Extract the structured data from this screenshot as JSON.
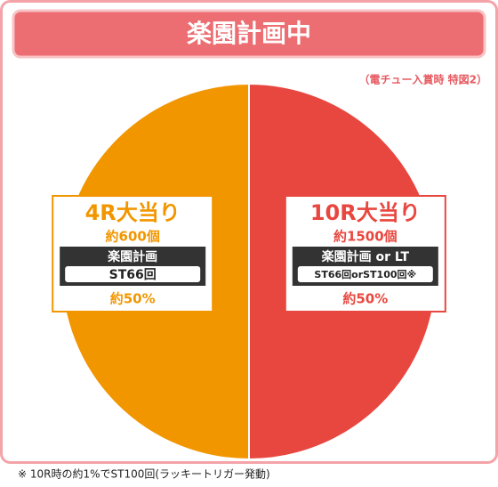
{
  "chart_data": {
    "type": "pie",
    "title": "楽園計画中",
    "subtitle": "（電チュー入賞時 特図2）",
    "categories": [
      "10R大当り",
      "4R大当り"
    ],
    "values": [
      50,
      50
    ],
    "value_labels": [
      "約50%",
      "約50%"
    ],
    "colors": [
      "#e8473f",
      "#f29600"
    ],
    "details": [
      {
        "payout": "約1500個",
        "mode": "楽園計画 or LT",
        "st": "ST66回orST100回※"
      },
      {
        "payout": "約600個",
        "mode": "楽園計画",
        "st": "ST66回"
      }
    ],
    "footnote": "※ 10R時の約1%でST100回(ラッキートリガー発動)"
  }
}
